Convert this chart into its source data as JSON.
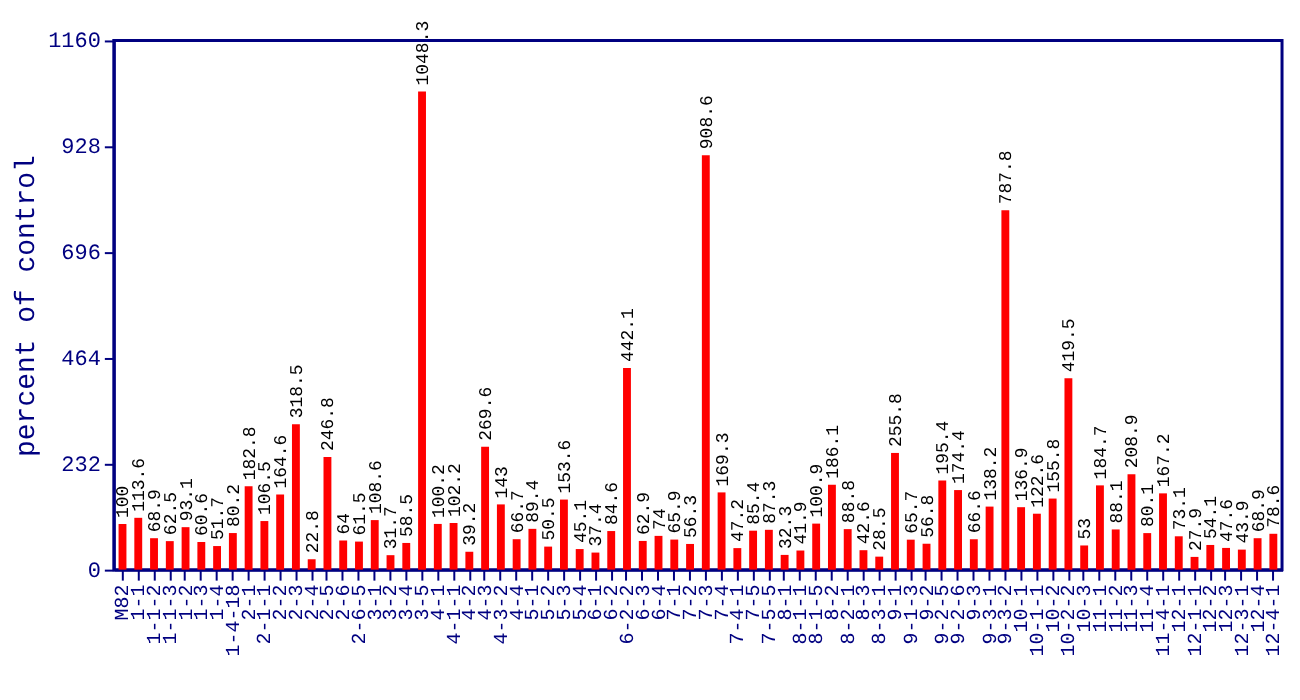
{
  "chart_data": {
    "type": "bar",
    "ylabel": "percent of control",
    "categories": [
      "M82",
      "1-1",
      "1-1-2",
      "1-1-3",
      "1-2",
      "1-3",
      "1-4",
      "1-4-18",
      "2-1",
      "2-1-1",
      "2-2",
      "2-3",
      "2-4",
      "2-5",
      "2-6",
      "2-6-5",
      "3-1",
      "3-2",
      "3-4",
      "3-5",
      "4-1",
      "4-1-1",
      "4-2",
      "4-3",
      "4-3-2",
      "4-4",
      "5-1",
      "5-2",
      "5-3",
      "5-4",
      "6-1",
      "6-2",
      "6-2-2",
      "6-3",
      "6-4",
      "7-1",
      "7-2",
      "7-3",
      "7-4",
      "7-4-1",
      "7-5",
      "7-5-5",
      "8-1",
      "8-1-1",
      "8-1-5",
      "8-2",
      "8-2-1",
      "8-3",
      "8-3-1",
      "9-1",
      "9-1-3",
      "9-2",
      "9-2-5",
      "9-2-6",
      "9-3",
      "9-3-1",
      "9-3-2",
      "10-1",
      "10-1-1",
      "10-2",
      "10-2-2",
      "10-3",
      "11-1",
      "11-2",
      "11-3",
      "11-4",
      "11-4-1",
      "12-1",
      "12-1-1",
      "12-2",
      "12-3",
      "12-3-1",
      "12-4",
      "12-4-1"
    ],
    "values": [
      100,
      113.6,
      68.9,
      62.5,
      93.1,
      60.6,
      51.7,
      80.2,
      182.8,
      106.5,
      164.6,
      318.5,
      22.8,
      246.8,
      64,
      61.5,
      108.6,
      31.7,
      58.5,
      1048.3,
      100.2,
      102.2,
      39.2,
      269.6,
      143,
      66.7,
      89.4,
      50.5,
      153.6,
      45.1,
      37.4,
      84.6,
      442.1,
      62.9,
      74,
      65.9,
      56.3,
      908.6,
      169.3,
      47.2,
      85.4,
      87.3,
      32.3,
      41.9,
      100.9,
      186.1,
      88.8,
      42.6,
      28.5,
      255.8,
      65.7,
      56.8,
      195.4,
      174.4,
      66.6,
      138.2,
      787.8,
      136.9,
      122.6,
      155.8,
      419.5,
      53,
      184.7,
      88.1,
      208.9,
      80.1,
      167.2,
      73.1,
      27.9,
      54.1,
      47.6,
      43.9,
      68.9,
      78.6
    ],
    "color": "#ff0000",
    "ylim": [
      0,
      1160
    ],
    "yticks": [
      0,
      232,
      464,
      696,
      928,
      1160
    ],
    "grid": false,
    "data_labels": true
  }
}
